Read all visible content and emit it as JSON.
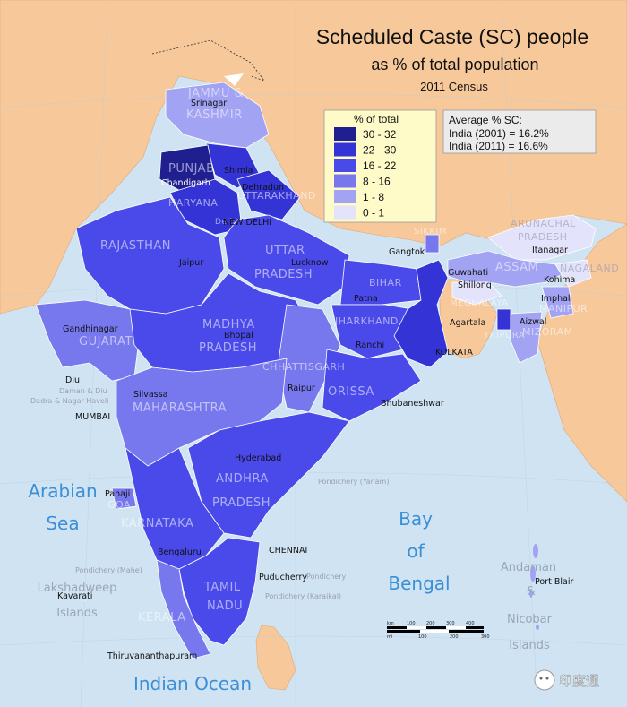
{
  "title": {
    "line1": "Scheduled Caste (SC) people",
    "line2": "as % of total population",
    "line3": "2011 Census"
  },
  "legend": {
    "heading": "% of total",
    "items": [
      {
        "label": "30 - 32",
        "color": "#1f1f8f"
      },
      {
        "label": "22 - 30",
        "color": "#3434d6"
      },
      {
        "label": "16 - 22",
        "color": "#4a4aea"
      },
      {
        "label": "8 - 16",
        "color": "#7878ee"
      },
      {
        "label": "1 - 8",
        "color": "#a3a3f4"
      },
      {
        "label": "0 - 1",
        "color": "#e3e3fb"
      }
    ]
  },
  "average_box": {
    "heading": "Average % SC:",
    "line1": "India (2001) = 16.2%",
    "line2": "India (2011) = 16.6%"
  },
  "states": {
    "jk": "JAMMU &",
    "jk2": "KASHMIR",
    "punjab": "PUNJAB",
    "haryana": "HARYANA",
    "uttarakhand": "UTTARAKHAND",
    "rajasthan": "RAJASTHAN",
    "up": "UTTAR",
    "up2": "PRADESH",
    "bihar": "BIHAR",
    "jharkhand": "JHARKHAND",
    "mp": "MADHYA",
    "mp2": "PRADESH",
    "gujarat": "GUJARAT",
    "chhattisgarh": "CHHATTISGARH",
    "orissa": "ORISSA",
    "maharashtra": "MAHARASHTRA",
    "ap": "ANDHRA",
    "ap2": "PRADESH",
    "goa": "GOA",
    "karnataka": "KARNATAKA",
    "tn": "TAMIL",
    "tn2": "NADU",
    "kerala": "KERALA",
    "sikkim": "SIKKIM",
    "arunachal": "ARUNACHAL",
    "arunachal2": "PRADESH",
    "assam": "ASSAM",
    "nagaland": "NAGALAND",
    "meghalaya": "MEGHALAYA",
    "manipur": "MANIPUR",
    "tripura": "TRIPURA",
    "mizoram": "MIZORAM",
    "delhi": "Delhi"
  },
  "cities": {
    "srinagar": "Srinagar",
    "shimla": "Shimla",
    "chandigarh": "Chandigarh",
    "dehradun": "Dehradun",
    "newdelhi": "NEW DELHI",
    "jaipur": "Jaipur",
    "lucknow": "Lucknow",
    "gangtok": "Gangtok",
    "itanagar": "Itanagar",
    "guwahati": "Guwahati",
    "shillong": "Shillong",
    "kohima": "Kohima",
    "imphal": "Imphal",
    "patna": "Patna",
    "agartala": "Agartala",
    "aizwal": "Aizwal",
    "gandhinagar": "Gandhinagar",
    "bhopal": "Bhopal",
    "ranchi": "Ranchi",
    "kolkata": "KOLKATA",
    "diu": "Diu",
    "silvassa": "Silvassa",
    "raipur": "Raipur",
    "bhubaneshwar": "Bhubaneshwar",
    "mumbai": "MUMBAI",
    "hyderabad": "Hyderabad",
    "panaji": "Panaji",
    "bengaluru": "Bengaluru",
    "chennai": "CHENNAI",
    "puducherry": "Puducherry",
    "kavarati": "Kavarati",
    "portblair": "Port Blair",
    "thiruvananthapuram": "Thiruvananthapuram"
  },
  "faint_labels": {
    "daman": "Daman & Diu",
    "dadra": "Dadra & Nagar Haveli",
    "pondy_yanam": "Pondichery (Yanam)",
    "pondy_mahe": "Pondichery (Mahe)",
    "pondy_karaikal": "Pondichery (Karaikal)",
    "pondy": "Pondichery"
  },
  "seas": {
    "arabian1": "Arabian",
    "arabian2": "Sea",
    "bay1": "Bay",
    "bay2": "of",
    "bay3": "Bengal",
    "indian": "Indian Ocean"
  },
  "islands": {
    "lak1": "Lakshadweep",
    "lak2": "Islands",
    "and1": "Andaman",
    "and2": "&",
    "and3": "Nicobar",
    "and4": "Islands"
  },
  "scale": {
    "ticks_top": [
      "km",
      "100",
      "200",
      "300",
      "400"
    ],
    "ticks_bottom": [
      "mi",
      "100",
      "200",
      "300"
    ]
  },
  "watermark": "印度通",
  "colors": {
    "sea": "#cfe3f2",
    "neighbors": "#f7c89a",
    "border": "#ffffff"
  }
}
